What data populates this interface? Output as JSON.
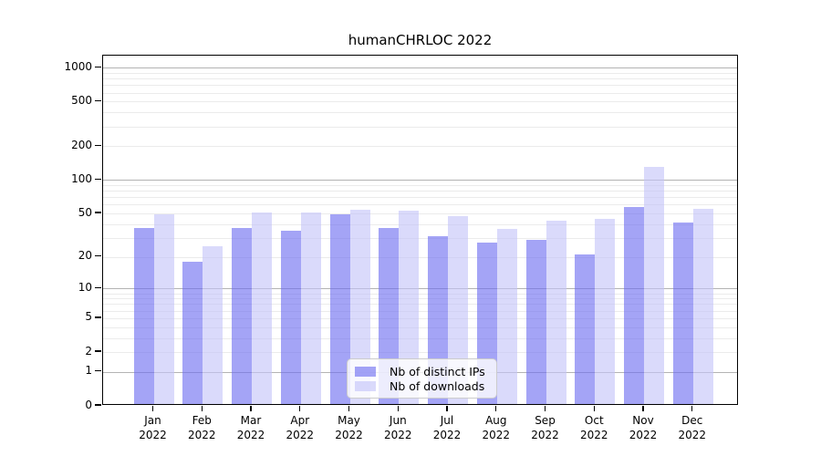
{
  "chart_data": {
    "type": "bar",
    "title": "humanCHRLOC 2022",
    "categories": [
      "Jan",
      "Feb",
      "Mar",
      "Apr",
      "May",
      "Jun",
      "Jul",
      "Aug",
      "Sep",
      "Oct",
      "Nov",
      "Dec"
    ],
    "year_label": "2022",
    "series": [
      {
        "name": "Nb of distinct IPs",
        "key": "distinct-ips",
        "color": "#6c6cf0",
        "alpha": 0.62,
        "values": [
          37,
          18,
          37,
          35,
          49,
          37,
          31,
          27,
          29,
          21,
          57,
          41
        ]
      },
      {
        "name": "Nb of downloads",
        "key": "downloads",
        "color": "#c4c4f8",
        "alpha": 0.62,
        "values": [
          49,
          25,
          51,
          51,
          54,
          53,
          47,
          36,
          43,
          45,
          130,
          55
        ]
      }
    ],
    "yscale": "log1p",
    "ylim": [
      0,
      1000
    ],
    "yticks": [
      0,
      1,
      2,
      5,
      10,
      20,
      50,
      100,
      200,
      500,
      1000
    ],
    "gridlines": {
      "major": [
        1,
        10,
        100,
        1000
      ],
      "minor": [
        2,
        3,
        4,
        5,
        6,
        7,
        8,
        9,
        20,
        30,
        40,
        50,
        60,
        70,
        80,
        90,
        200,
        300,
        400,
        500,
        600,
        700,
        800,
        900
      ]
    },
    "grid": true,
    "legend_position": "lower center"
  }
}
